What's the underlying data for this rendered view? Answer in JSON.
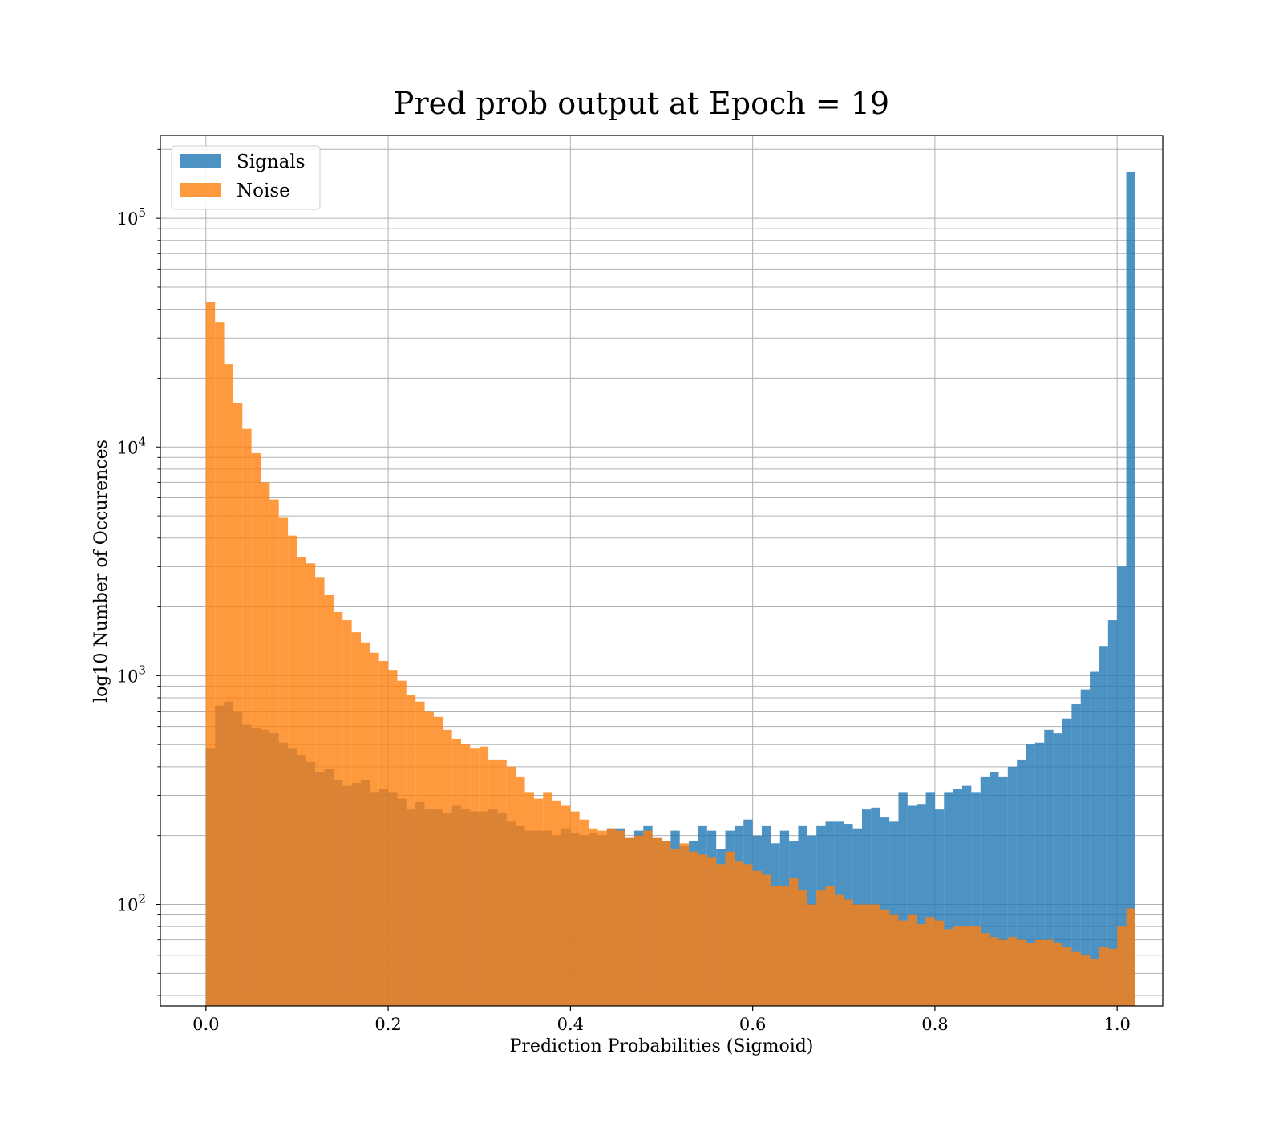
{
  "chart_data": {
    "type": "bar",
    "title": "Pred prob output at Epoch = 19",
    "xlabel": "Prediction Probabilities (Sigmoid)",
    "ylabel": "log10 Number of Occurences",
    "xlim": [
      -0.05,
      1.05
    ],
    "ylim": [
      36,
      230000
    ],
    "yscale": "log",
    "grid": true,
    "legend_position": "top-left",
    "bin_start": 0.0,
    "bin_width": 0.01,
    "x_ticks": [
      0.0,
      0.2,
      0.4,
      0.6,
      0.8,
      1.0
    ],
    "x_tick_labels": [
      "0.0",
      "0.2",
      "0.4",
      "0.6",
      "0.8",
      "1.0"
    ],
    "y_ticks": [
      100,
      1000,
      10000,
      100000
    ],
    "y_tick_labels": [
      {
        "base": "10",
        "exp": "2"
      },
      {
        "base": "10",
        "exp": "3"
      },
      {
        "base": "10",
        "exp": "4"
      },
      {
        "base": "10",
        "exp": "5"
      }
    ],
    "series": [
      {
        "name": "Signals",
        "color": "#1f77b4",
        "values": [
          480,
          740,
          770,
          700,
          610,
          590,
          580,
          560,
          510,
          480,
          450,
          420,
          380,
          390,
          350,
          330,
          340,
          350,
          310,
          320,
          310,
          290,
          260,
          280,
          260,
          260,
          250,
          270,
          260,
          255,
          255,
          260,
          250,
          230,
          220,
          210,
          210,
          210,
          200,
          215,
          205,
          200,
          205,
          200,
          215,
          215,
          195,
          210,
          220,
          195,
          190,
          210,
          180,
          190,
          220,
          210,
          175,
          210,
          220,
          235,
          200,
          220,
          185,
          210,
          190,
          220,
          200,
          220,
          230,
          230,
          225,
          215,
          260,
          265,
          240,
          230,
          310,
          270,
          275,
          310,
          260,
          310,
          320,
          330,
          310,
          360,
          380,
          360,
          400,
          430,
          500,
          510,
          580,
          560,
          650,
          750,
          870,
          1040,
          1350,
          1750,
          3000,
          160000
        ]
      },
      {
        "name": "Noise",
        "color": "#ff7f0e",
        "values": [
          43000,
          35000,
          23000,
          15500,
          12000,
          9400,
          7000,
          5900,
          4900,
          4100,
          3300,
          3100,
          2700,
          2250,
          1900,
          1750,
          1550,
          1400,
          1260,
          1160,
          1060,
          950,
          820,
          770,
          700,
          660,
          580,
          530,
          500,
          480,
          490,
          430,
          430,
          400,
          360,
          310,
          290,
          310,
          285,
          270,
          255,
          235,
          215,
          210,
          215,
          210,
          195,
          200,
          210,
          195,
          190,
          175,
          185,
          170,
          165,
          160,
          150,
          170,
          155,
          150,
          140,
          135,
          120,
          120,
          130,
          115,
          100,
          115,
          120,
          110,
          105,
          100,
          100,
          100,
          95,
          90,
          85,
          90,
          82,
          88,
          85,
          78,
          80,
          80,
          80,
          75,
          72,
          70,
          72,
          70,
          68,
          70,
          70,
          68,
          65,
          62,
          60,
          58,
          65,
          64,
          80,
          96
        ]
      }
    ]
  }
}
